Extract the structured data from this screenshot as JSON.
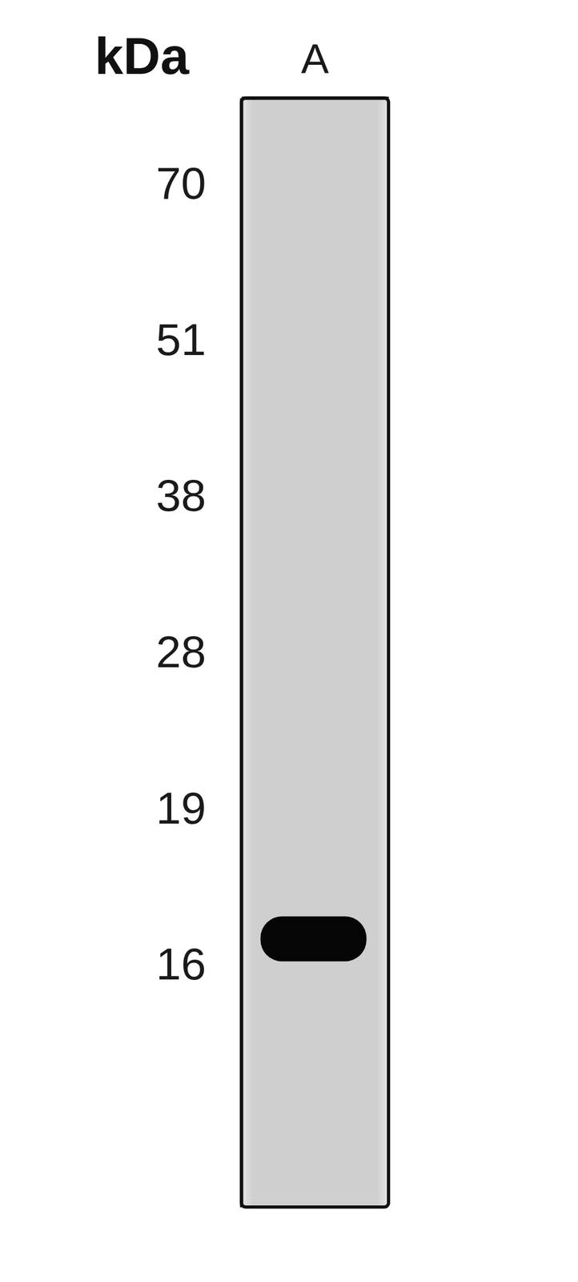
{
  "chart_data": {
    "type": "blot",
    "title": "kDa",
    "categories": [
      "A"
    ],
    "values": [
      16.5
    ],
    "color": "#050505",
    "ylim": [
      11,
      80
    ],
    "yticks": [
      70,
      51,
      38,
      28,
      19,
      16
    ]
  }
}
